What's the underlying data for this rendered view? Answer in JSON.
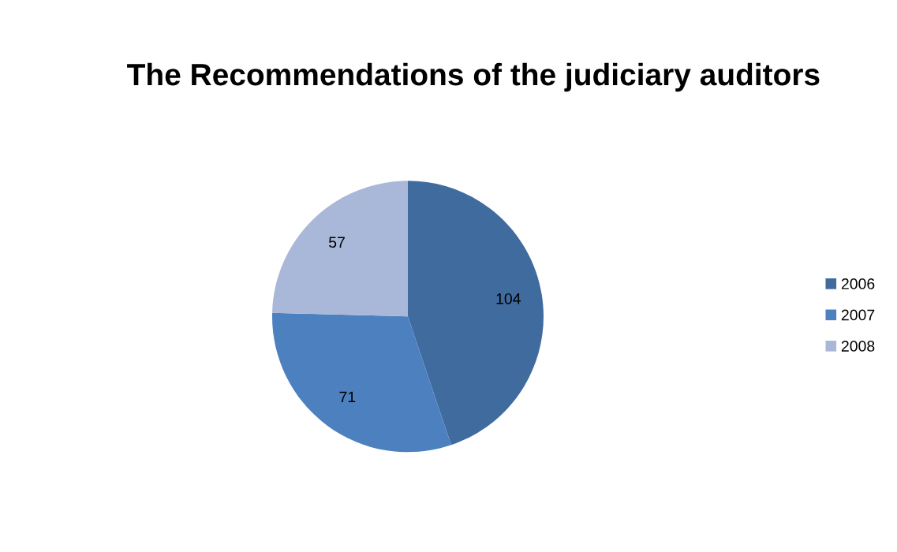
{
  "chart_data": {
    "type": "pie",
    "title": "The Recommendations of the judiciary auditors",
    "categories": [
      "2006",
      "2007",
      "2008"
    ],
    "values": [
      104,
      71,
      57
    ],
    "colors": [
      "#3f6b9f",
      "#4c80bf",
      "#a9b8d8"
    ],
    "data_labels": true,
    "legend": "right"
  }
}
